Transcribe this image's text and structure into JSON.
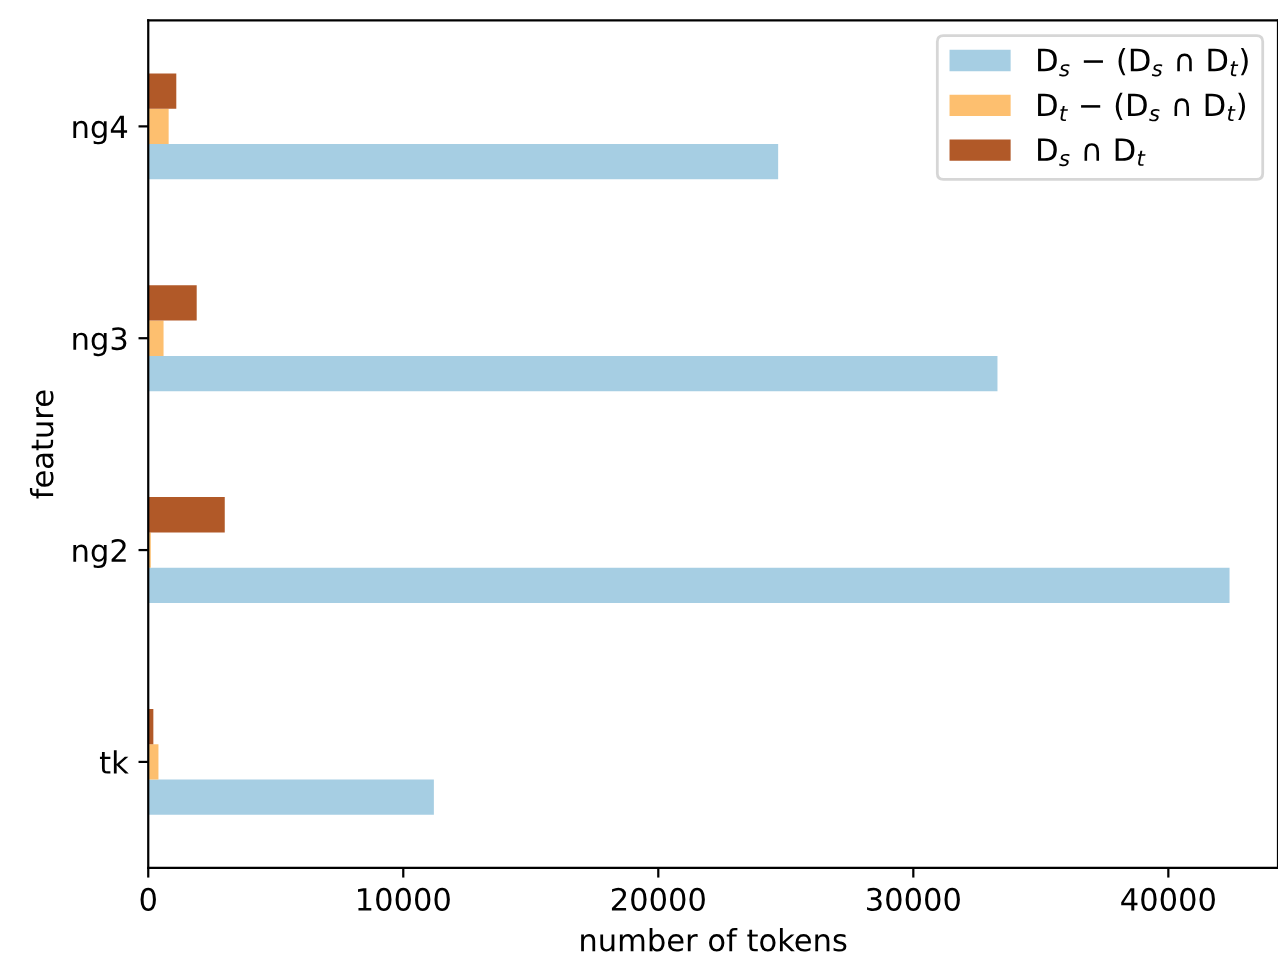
{
  "chart_data": {
    "type": "bar",
    "orientation": "horizontal",
    "xlabel": "number of tokens",
    "ylabel": "feature",
    "categories": [
      "ng4",
      "ng3",
      "ng2",
      "tk"
    ],
    "series": [
      {
        "name": "D$_{s}$ − (D$_{s}$ ∩ D$_{t}$)",
        "color": "#a6cee3",
        "values": [
          24700,
          33300,
          42400,
          11200
        ]
      },
      {
        "name": "D$_{t}$ − (D$_{s}$ ∩ D$_{t}$)",
        "color": "#fdbf6f",
        "values": [
          800,
          600,
          100,
          400
        ]
      },
      {
        "name": "D$_{s}$ ∩ D$_{t}$",
        "color": "#b15928",
        "values": [
          1100,
          1900,
          3000,
          200
        ]
      }
    ],
    "xlim": [
      0,
      44300
    ],
    "xticks": [
      0,
      10000,
      20000,
      30000,
      40000
    ],
    "legend": "top right",
    "grid": false
  }
}
